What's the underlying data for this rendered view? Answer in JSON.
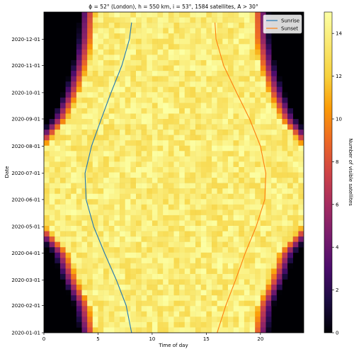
{
  "chart_data": {
    "type": "heatmap",
    "title": "ϕ = 52° (London), h = 550 km, i = 53°, 1584 satellites, A > 30°",
    "xlabel": "Time of day",
    "ylabel": "Date",
    "xlim": [
      0,
      24
    ],
    "xticks": [
      0,
      5,
      10,
      15,
      20
    ],
    "ylim": [
      "2020-01-01",
      "2020-12-31"
    ],
    "yticks": [
      "2020-01-01",
      "2020-02-01",
      "2020-03-01",
      "2020-04-01",
      "2020-05-01",
      "2020-06-01",
      "2020-07-01",
      "2020-08-01",
      "2020-09-01",
      "2020-10-01",
      "2020-11-01",
      "2020-12-01"
    ],
    "colorbar": {
      "label": "Number of visible satellites",
      "ticks": [
        0,
        2,
        4,
        6,
        8,
        10,
        12,
        14
      ],
      "range": [
        0,
        15
      ],
      "colormap": "inferno"
    },
    "night_boundary_hours": {
      "months": [
        "2020-01-01",
        "2020-02-01",
        "2020-03-01",
        "2020-04-01",
        "2020-05-01",
        "2020-06-01",
        "2020-07-01",
        "2020-08-01",
        "2020-09-01",
        "2020-10-01",
        "2020-11-01",
        "2020-12-01",
        "2020-12-31"
      ],
      "start": [
        4.8,
        4.3,
        3.2,
        2.3,
        0.2,
        0.0,
        0.0,
        0.2,
        2.2,
        3.3,
        4.1,
        4.6,
        4.8
      ],
      "end": [
        19.3,
        19.7,
        20.8,
        21.7,
        23.8,
        24.0,
        24.0,
        23.8,
        21.8,
        20.7,
        19.9,
        19.4,
        19.3
      ]
    },
    "series": [
      {
        "name": "Sunrise",
        "color": "#1f77b4",
        "dates": [
          "2020-01-01",
          "2020-02-01",
          "2020-03-01",
          "2020-04-01",
          "2020-05-01",
          "2020-06-01",
          "2020-07-01",
          "2020-08-01",
          "2020-09-01",
          "2020-10-01",
          "2020-11-01",
          "2020-12-01",
          "2020-12-20"
        ],
        "hours": [
          8.1,
          7.6,
          6.7,
          5.6,
          4.6,
          3.9,
          3.8,
          4.4,
          5.3,
          6.2,
          7.2,
          7.9,
          8.1
        ]
      },
      {
        "name": "Sunset",
        "color": "#ff7f0e",
        "dates": [
          "2020-01-01",
          "2020-02-01",
          "2020-03-01",
          "2020-04-01",
          "2020-05-01",
          "2020-06-01",
          "2020-07-01",
          "2020-08-01",
          "2020-09-01",
          "2020-10-01",
          "2020-11-01",
          "2020-12-01",
          "2020-12-20"
        ],
        "hours": [
          16.0,
          16.8,
          17.7,
          18.6,
          19.6,
          20.4,
          20.5,
          20.0,
          19.0,
          17.8,
          16.6,
          15.9,
          15.8
        ]
      }
    ],
    "legend_position": "top-right",
    "grid": false
  }
}
